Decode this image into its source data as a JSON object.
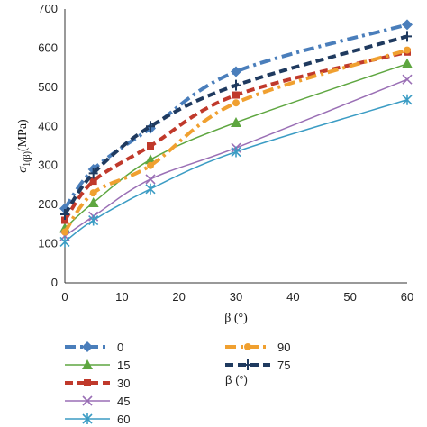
{
  "chart_data": {
    "type": "line",
    "xlabel": "β (°)",
    "ylabel": "σ1(β) (MPa)",
    "ylabel_main": "σ",
    "ylabel_sub": "1(β)",
    "ylabel_unit": "(MPa)",
    "legend_title": "β (°)",
    "xlim": [
      0,
      60
    ],
    "ylim": [
      0,
      700
    ],
    "x_ticks": [
      0,
      10,
      20,
      30,
      40,
      50,
      60
    ],
    "y_ticks": [
      0,
      100,
      200,
      300,
      400,
      500,
      600,
      700
    ],
    "grid": false,
    "legend_position": "bottom",
    "series": [
      {
        "name": "0",
        "color": "#4a7ebb",
        "marker": "diamond",
        "dash": "dashdot",
        "x": [
          0,
          5,
          15,
          30,
          60
        ],
        "y": [
          190,
          290,
          395,
          540,
          660
        ]
      },
      {
        "name": "15",
        "color": "#5ea640",
        "marker": "triangle",
        "dash": "solid",
        "x": [
          0,
          5,
          15,
          30,
          60
        ],
        "y": [
          140,
          205,
          315,
          410,
          560
        ]
      },
      {
        "name": "30",
        "color": "#c0392b",
        "marker": "square",
        "dash": "dash",
        "x": [
          0,
          5,
          15,
          30,
          60
        ],
        "y": [
          160,
          260,
          350,
          480,
          590
        ]
      },
      {
        "name": "45",
        "color": "#9a6fb5",
        "marker": "x",
        "dash": "solid",
        "x": [
          0,
          5,
          15,
          30,
          60
        ],
        "y": [
          120,
          170,
          265,
          345,
          520
        ]
      },
      {
        "name": "60",
        "color": "#3b9cc4",
        "marker": "star",
        "dash": "solid",
        "x": [
          0,
          5,
          15,
          30,
          60
        ],
        "y": [
          105,
          160,
          240,
          335,
          468
        ]
      },
      {
        "name": "90",
        "color": "#f0a030",
        "marker": "circle",
        "dash": "dashdot",
        "x": [
          0,
          5,
          15,
          30,
          60
        ],
        "y": [
          130,
          230,
          300,
          460,
          595
        ]
      },
      {
        "name": "75",
        "color": "#1f3a5f",
        "marker": "plus",
        "dash": "dash",
        "x": [
          0,
          5,
          15,
          30,
          60
        ],
        "y": [
          175,
          280,
          400,
          505,
          630
        ]
      }
    ]
  }
}
